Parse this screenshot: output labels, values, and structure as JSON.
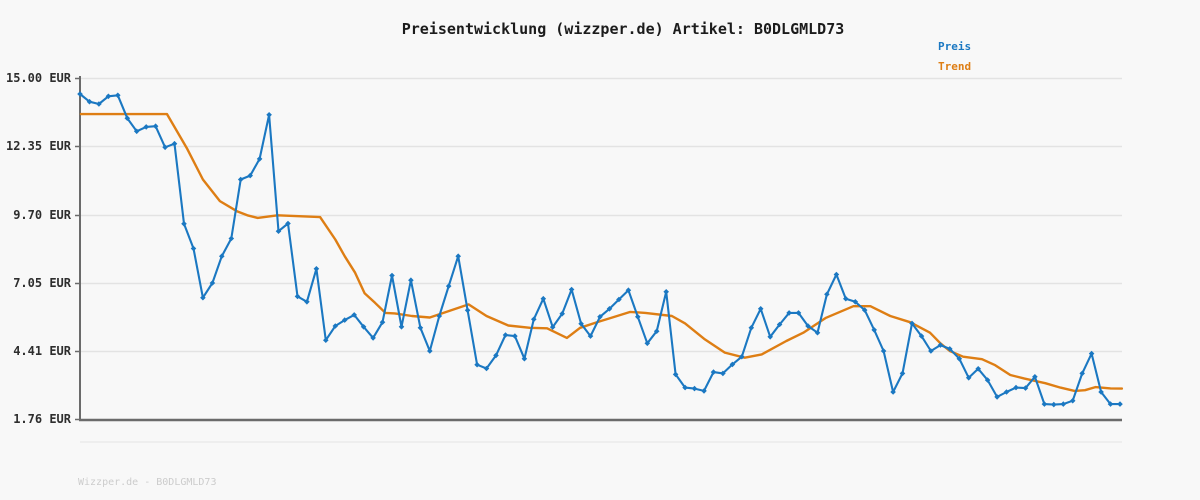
{
  "page": {
    "background": "#f8f8f8"
  },
  "footer": {
    "watermark": "Wizzper.de - B0DLGMLD73"
  },
  "chart_data": {
    "type": "line",
    "title": "Preisentwicklung (wizzper.de) Artikel: B0DLGMLD73",
    "xlabel": "",
    "ylabel": "",
    "grid": true,
    "legend_position": "top-right",
    "currency": "EUR",
    "y_axis": {
      "ylim": [
        1.76,
        15.0
      ],
      "ticks": [
        {
          "label": "15.00 EUR",
          "value": 15.0
        },
        {
          "label": "12.35 EUR",
          "value": 12.35
        },
        {
          "label": "9.70 EUR",
          "value": 9.7
        },
        {
          "label": "7.05 EUR",
          "value": 7.05
        },
        {
          "label": "4.41 EUR",
          "value": 4.41
        },
        {
          "label": "1.76 EUR",
          "value": 1.76
        }
      ]
    },
    "colors": {
      "price": "#1b78c2",
      "trend": "#de7e14",
      "grid": "#e3e3e3",
      "subgrid": "#ebebeb",
      "axis": "#6b6b6b"
    },
    "series": [
      {
        "name": "Preis",
        "style": "line-markers",
        "color": "#1b78c2",
        "values": [
          14.38,
          14.08,
          13.99,
          14.29,
          14.33,
          13.44,
          12.93,
          13.1,
          13.13,
          12.31,
          12.45,
          9.34,
          8.38,
          6.47,
          7.04,
          8.08,
          8.77,
          11.06,
          11.21,
          11.86,
          13.57,
          9.05,
          9.35,
          6.52,
          6.31,
          7.59,
          4.82,
          5.37,
          5.6,
          5.8,
          5.34,
          4.91,
          5.52,
          7.33,
          5.34,
          7.15,
          5.3,
          4.4,
          5.76,
          6.92,
          8.08,
          5.98,
          3.87,
          3.72,
          4.23,
          5.02,
          4.98,
          4.1,
          5.63,
          6.43,
          5.33,
          5.85,
          6.79,
          5.46,
          4.98,
          5.73,
          6.04,
          6.4,
          6.76,
          5.73,
          4.7,
          5.17,
          6.7,
          3.49,
          2.98,
          2.94,
          2.85,
          3.58,
          3.53,
          3.88,
          4.18,
          5.3,
          6.04,
          4.95,
          5.43,
          5.88,
          5.88,
          5.37,
          5.11,
          6.6,
          7.37,
          6.43,
          6.31,
          5.99,
          5.22,
          4.4,
          2.81,
          3.53,
          5.47,
          4.98,
          4.4,
          4.63,
          4.48,
          4.1,
          3.36,
          3.71,
          3.27,
          2.62,
          2.81,
          2.98,
          2.96,
          3.4,
          2.34,
          2.32,
          2.34,
          2.47,
          3.53,
          4.3,
          2.81,
          2.34,
          2.34
        ]
      },
      {
        "name": "Trend",
        "style": "line",
        "color": "#de7e14",
        "points": [
          [
            0.1,
            13.6
          ],
          [
            9.2,
            13.6
          ],
          [
            11.3,
            12.28
          ],
          [
            13.0,
            11.06
          ],
          [
            14.8,
            10.22
          ],
          [
            16.6,
            9.83
          ],
          [
            17.7,
            9.67
          ],
          [
            18.8,
            9.57
          ],
          [
            20.9,
            9.67
          ],
          [
            25.4,
            9.6
          ],
          [
            27.0,
            8.73
          ],
          [
            28.0,
            8.08
          ],
          [
            29.1,
            7.44
          ],
          [
            30.1,
            6.64
          ],
          [
            31.2,
            6.27
          ],
          [
            32.3,
            5.88
          ],
          [
            33.3,
            5.86
          ],
          [
            35.1,
            5.76
          ],
          [
            37.0,
            5.7
          ],
          [
            41.1,
            6.21
          ],
          [
            43.0,
            5.76
          ],
          [
            45.3,
            5.39
          ],
          [
            47.6,
            5.3
          ],
          [
            49.4,
            5.28
          ],
          [
            51.5,
            4.91
          ],
          [
            52.9,
            5.3
          ],
          [
            54.8,
            5.53
          ],
          [
            56.3,
            5.7
          ],
          [
            58.2,
            5.92
          ],
          [
            59.8,
            5.88
          ],
          [
            62.6,
            5.76
          ],
          [
            64.0,
            5.47
          ],
          [
            66.1,
            4.85
          ],
          [
            68.2,
            4.34
          ],
          [
            70.3,
            4.14
          ],
          [
            72.1,
            4.27
          ],
          [
            74.7,
            4.79
          ],
          [
            76.5,
            5.11
          ],
          [
            78.9,
            5.69
          ],
          [
            81.8,
            6.14
          ],
          [
            83.6,
            6.14
          ],
          [
            85.7,
            5.76
          ],
          [
            87.8,
            5.52
          ],
          [
            89.9,
            5.11
          ],
          [
            91.0,
            4.7
          ],
          [
            92.0,
            4.4
          ],
          [
            93.4,
            4.18
          ],
          [
            95.4,
            4.08
          ],
          [
            96.8,
            3.85
          ],
          [
            98.4,
            3.47
          ],
          [
            99.9,
            3.33
          ],
          [
            102.1,
            3.15
          ],
          [
            103.7,
            2.98
          ],
          [
            105.2,
            2.85
          ],
          [
            106.3,
            2.88
          ],
          [
            107.4,
            3.0
          ],
          [
            109.0,
            2.95
          ],
          [
            110.2,
            2.94
          ]
        ]
      }
    ]
  }
}
